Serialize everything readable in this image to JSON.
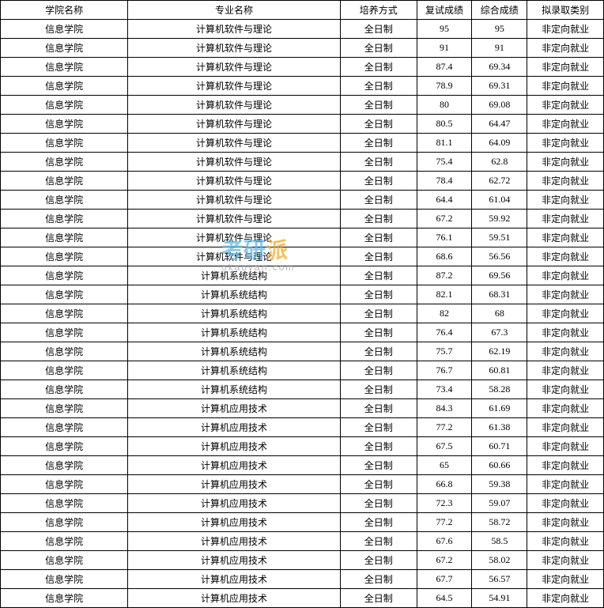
{
  "table": {
    "headers": [
      "学院名称",
      "专业名称",
      "培养方式",
      "复试成绩",
      "综合成绩",
      "拟录取类别"
    ],
    "column_classes": [
      "col-school",
      "col-major",
      "col-mode",
      "col-score1",
      "col-score2",
      "col-type"
    ],
    "border_color": "#000000",
    "background_color": "#ffffff",
    "font_size": 12,
    "rows": [
      [
        "信息学院",
        "计算机软件与理论",
        "全日制",
        "95",
        "95",
        "非定向就业"
      ],
      [
        "信息学院",
        "计算机软件与理论",
        "全日制",
        "91",
        "91",
        "非定向就业"
      ],
      [
        "信息学院",
        "计算机软件与理论",
        "全日制",
        "87.4",
        "69.34",
        "非定向就业"
      ],
      [
        "信息学院",
        "计算机软件与理论",
        "全日制",
        "78.9",
        "69.31",
        "非定向就业"
      ],
      [
        "信息学院",
        "计算机软件与理论",
        "全日制",
        "80",
        "69.08",
        "非定向就业"
      ],
      [
        "信息学院",
        "计算机软件与理论",
        "全日制",
        "80.5",
        "64.47",
        "非定向就业"
      ],
      [
        "信息学院",
        "计算机软件与理论",
        "全日制",
        "81.1",
        "64.09",
        "非定向就业"
      ],
      [
        "信息学院",
        "计算机软件与理论",
        "全日制",
        "75.4",
        "62.8",
        "非定向就业"
      ],
      [
        "信息学院",
        "计算机软件与理论",
        "全日制",
        "78.4",
        "62.72",
        "非定向就业"
      ],
      [
        "信息学院",
        "计算机软件与理论",
        "全日制",
        "64.4",
        "61.04",
        "非定向就业"
      ],
      [
        "信息学院",
        "计算机软件与理论",
        "全日制",
        "67.2",
        "59.92",
        "非定向就业"
      ],
      [
        "信息学院",
        "计算机软件与理论",
        "全日制",
        "76.1",
        "59.51",
        "非定向就业"
      ],
      [
        "信息学院",
        "计算机软件与理论",
        "全日制",
        "68.6",
        "56.56",
        "非定向就业"
      ],
      [
        "信息学院",
        "计算机系统结构",
        "全日制",
        "87.2",
        "69.56",
        "非定向就业"
      ],
      [
        "信息学院",
        "计算机系统结构",
        "全日制",
        "82.1",
        "68.31",
        "非定向就业"
      ],
      [
        "信息学院",
        "计算机系统结构",
        "全日制",
        "82",
        "68",
        "非定向就业"
      ],
      [
        "信息学院",
        "计算机系统结构",
        "全日制",
        "76.4",
        "67.3",
        "非定向就业"
      ],
      [
        "信息学院",
        "计算机系统结构",
        "全日制",
        "75.7",
        "62.19",
        "非定向就业"
      ],
      [
        "信息学院",
        "计算机系统结构",
        "全日制",
        "76.7",
        "60.81",
        "非定向就业"
      ],
      [
        "信息学院",
        "计算机系统结构",
        "全日制",
        "73.4",
        "58.28",
        "非定向就业"
      ],
      [
        "信息学院",
        "计算机应用技术",
        "全日制",
        "84.3",
        "61.69",
        "非定向就业"
      ],
      [
        "信息学院",
        "计算机应用技术",
        "全日制",
        "77.2",
        "61.38",
        "非定向就业"
      ],
      [
        "信息学院",
        "计算机应用技术",
        "全日制",
        "67.5",
        "60.71",
        "非定向就业"
      ],
      [
        "信息学院",
        "计算机应用技术",
        "全日制",
        "65",
        "60.66",
        "非定向就业"
      ],
      [
        "信息学院",
        "计算机应用技术",
        "全日制",
        "66.8",
        "59.38",
        "非定向就业"
      ],
      [
        "信息学院",
        "计算机应用技术",
        "全日制",
        "72.3",
        "59.07",
        "非定向就业"
      ],
      [
        "信息学院",
        "计算机应用技术",
        "全日制",
        "77.2",
        "58.72",
        "非定向就业"
      ],
      [
        "信息学院",
        "计算机应用技术",
        "全日制",
        "67.6",
        "58.5",
        "非定向就业"
      ],
      [
        "信息学院",
        "计算机应用技术",
        "全日制",
        "67.2",
        "58.02",
        "非定向就业"
      ],
      [
        "信息学院",
        "计算机应用技术",
        "全日制",
        "67.7",
        "56.57",
        "非定向就业"
      ],
      [
        "信息学院",
        "计算机应用技术",
        "全日制",
        "64.5",
        "54.91",
        "非定向就业"
      ]
    ]
  },
  "watermark": {
    "text_main": "考研派",
    "text_sub": "okaoyan.com",
    "color_blue": "#5bb5e8",
    "color_orange": "#f5a623",
    "color_sub": "#999999",
    "font_size_main": 28,
    "font_size_sub": 12
  }
}
